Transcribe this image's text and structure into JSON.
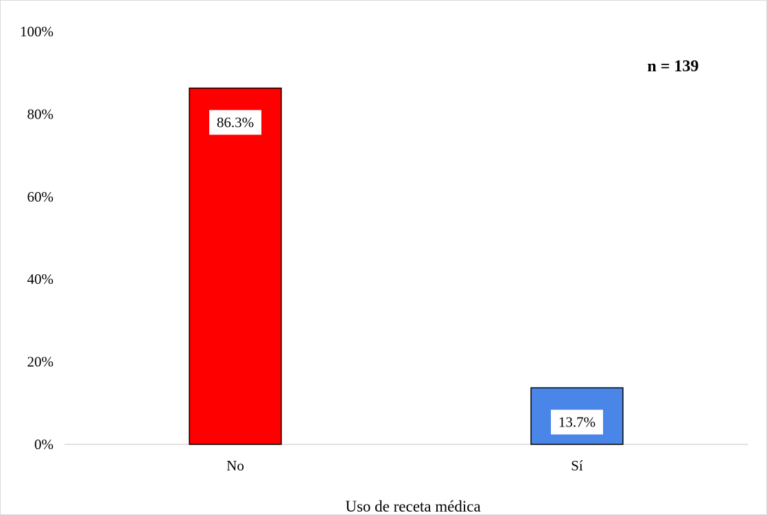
{
  "chart_data": {
    "type": "bar",
    "categories": [
      "No",
      "Sí"
    ],
    "values": [
      86.3,
      13.7
    ],
    "value_labels": [
      "86.3%",
      "13.7%"
    ],
    "bar_colors": [
      "#ff0000",
      "#4a86e8"
    ],
    "bar_outline_color": "#000000",
    "title": "",
    "xlabel": "Uso de receta médica",
    "ylabel": "",
    "ylim": [
      0,
      100
    ],
    "yticks": [
      0,
      20,
      40,
      60,
      80,
      100
    ],
    "ytick_labels": [
      "0%",
      "20%",
      "40%",
      "60%",
      "80%",
      "100%"
    ],
    "grid": false,
    "legend": "none",
    "annotation": "n = 139"
  }
}
